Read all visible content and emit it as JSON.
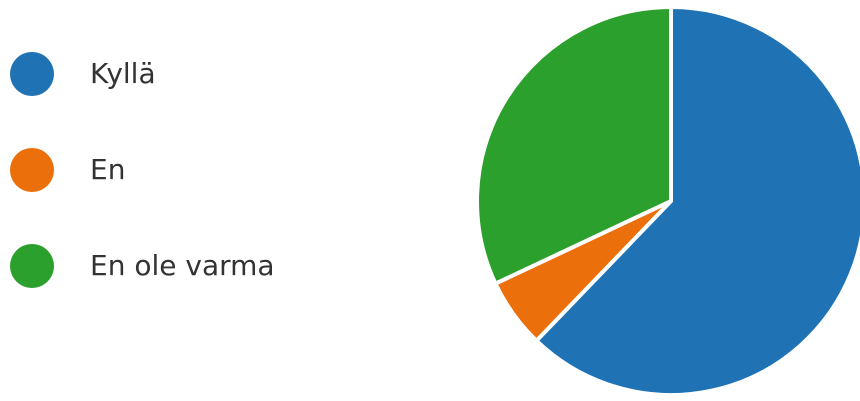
{
  "chart_data": {
    "type": "pie",
    "title": "",
    "start_angle_deg": 0,
    "direction": "clockwise",
    "series": [
      {
        "name": "",
        "slices": [
          {
            "label": "Kyllä",
            "value": 62.2,
            "color": "#1f72b4"
          },
          {
            "label": "En",
            "value": 5.8,
            "color": "#eb6f0a"
          },
          {
            "label": "En ole varma",
            "value": 32.0,
            "color": "#2ca02c"
          }
        ]
      }
    ],
    "legend_position": "left",
    "slice_separator_color": "#ffffff"
  }
}
